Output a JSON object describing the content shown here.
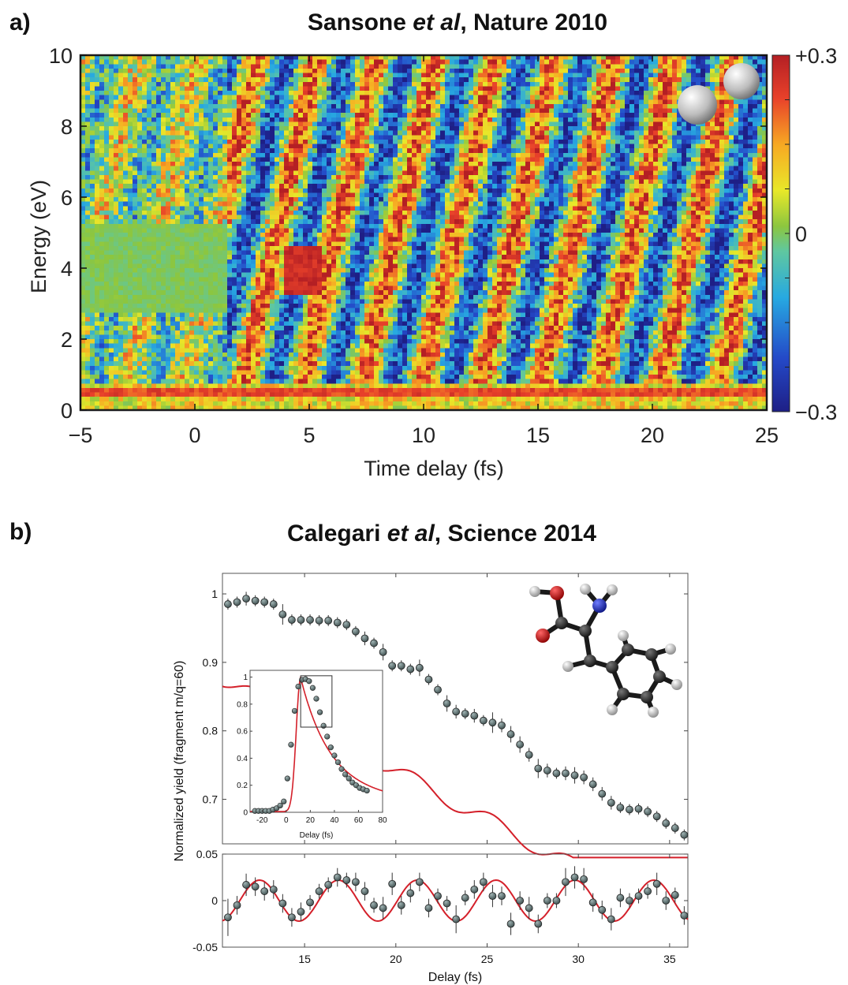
{
  "panel_a": {
    "letter": "a)",
    "title": {
      "author": "Sansone ",
      "etal": "et al",
      "rest": ", Nature 2010"
    },
    "chart_data": {
      "type": "heatmap",
      "xlabel": "Time delay (fs)",
      "ylabel": "Energy (eV)",
      "xlim": [
        -5,
        25
      ],
      "ylim": [
        0,
        10
      ],
      "x_ticks": [
        "−5",
        "0",
        "5",
        "10",
        "15",
        "20",
        "25"
      ],
      "x_tick_values": [
        -5,
        0,
        5,
        10,
        15,
        20,
        25
      ],
      "y_ticks": [
        "0",
        "2",
        "4",
        "6",
        "8",
        "10"
      ],
      "y_tick_values": [
        0,
        2,
        4,
        6,
        8,
        10
      ],
      "colorbar": {
        "labels": [
          "+0.3",
          "0",
          "−0.3"
        ],
        "values": [
          0.3,
          0,
          -0.3
        ],
        "range": [
          -0.3,
          0.3
        ],
        "colormap": "jet"
      },
      "molecule": "hydrogen-molecule-icon"
    }
  },
  "panel_b": {
    "letter": "b)",
    "title": {
      "author": "Calegari ",
      "etal": "et al",
      "rest": ", Science 2014"
    },
    "chart_data": [
      {
        "name": "main",
        "type": "scatter",
        "xlabel": "Delay (fs)",
        "ylabel": "Normalized yield (fragment m/q=60)",
        "xlim": [
          10.5,
          36
        ],
        "ylim": [
          0.635,
          1.03
        ],
        "y_ticks": [
          "1",
          "0.9",
          "0.8",
          "0.7"
        ],
        "y_tick_values": [
          1,
          0.9,
          0.8,
          0.7
        ],
        "x": [
          10.8,
          11.3,
          11.8,
          12.3,
          12.8,
          13.3,
          13.8,
          14.3,
          14.8,
          15.3,
          15.8,
          16.3,
          16.8,
          17.3,
          17.8,
          18.3,
          18.8,
          19.3,
          19.8,
          20.3,
          20.8,
          21.3,
          21.8,
          22.3,
          22.8,
          23.3,
          23.8,
          24.3,
          24.8,
          25.3,
          25.8,
          26.3,
          26.8,
          27.3,
          27.8,
          28.3,
          28.8,
          29.3,
          29.8,
          30.3,
          30.8,
          31.3,
          31.8,
          32.3,
          32.8,
          33.3,
          33.8,
          34.3,
          34.8,
          35.3,
          35.8
        ],
        "y": [
          0.985,
          0.988,
          0.993,
          0.99,
          0.988,
          0.985,
          0.97,
          0.962,
          0.962,
          0.962,
          0.961,
          0.961,
          0.958,
          0.955,
          0.945,
          0.935,
          0.928,
          0.915,
          0.895,
          0.895,
          0.89,
          0.892,
          0.875,
          0.86,
          0.84,
          0.828,
          0.825,
          0.822,
          0.815,
          0.812,
          0.808,
          0.795,
          0.78,
          0.765,
          0.745,
          0.742,
          0.738,
          0.738,
          0.735,
          0.732,
          0.722,
          0.708,
          0.695,
          0.688,
          0.685,
          0.686,
          0.682,
          0.675,
          0.665,
          0.658,
          0.648
        ],
        "yerr": [
          0.008,
          0.008,
          0.01,
          0.008,
          0.008,
          0.008,
          0.015,
          0.008,
          0.008,
          0.008,
          0.008,
          0.008,
          0.008,
          0.008,
          0.008,
          0.01,
          0.008,
          0.012,
          0.008,
          0.008,
          0.008,
          0.012,
          0.008,
          0.008,
          0.012,
          0.01,
          0.008,
          0.01,
          0.008,
          0.015,
          0.01,
          0.012,
          0.012,
          0.01,
          0.014,
          0.01,
          0.008,
          0.01,
          0.012,
          0.01,
          0.01,
          0.01,
          0.01,
          0.008,
          0.008,
          0.008,
          0.008,
          0.008,
          0.008,
          0.008,
          0.008
        ],
        "molecule": "phenylalanine-molecule-icon"
      },
      {
        "name": "inset",
        "type": "line",
        "xlabel": "Delay (fs)",
        "xlim": [
          -30,
          80
        ],
        "ylim": [
          0,
          1.05
        ],
        "x_ticks": [
          "-20",
          "0",
          "20",
          "40",
          "60",
          "80"
        ],
        "x_tick_values": [
          -20,
          0,
          20,
          40,
          60,
          80
        ],
        "y_ticks": [
          "0",
          "0.2",
          "0.4",
          "0.6",
          "0.8",
          "1"
        ],
        "y_tick_values": [
          0,
          0.2,
          0.4,
          0.6,
          0.8,
          1
        ],
        "x": [
          -26,
          -23,
          -20,
          -17,
          -14,
          -11,
          -8,
          -5,
          -2,
          1,
          4,
          7,
          10,
          13,
          16,
          19,
          22,
          25,
          28,
          31,
          34,
          37,
          40,
          43,
          46,
          49,
          52,
          55,
          58,
          61,
          64,
          67
        ],
        "y": [
          0.01,
          0.01,
          0.01,
          0.01,
          0.01,
          0.02,
          0.03,
          0.05,
          0.08,
          0.25,
          0.5,
          0.75,
          0.93,
          0.98,
          0.985,
          0.97,
          0.92,
          0.84,
          0.74,
          0.64,
          0.56,
          0.48,
          0.42,
          0.37,
          0.32,
          0.28,
          0.25,
          0.22,
          0.2,
          0.18,
          0.17,
          0.16
        ],
        "highlight_box": {
          "x": [
            12,
            38
          ],
          "y": [
            0.63,
            1.01
          ]
        }
      },
      {
        "name": "residual",
        "type": "scatter",
        "xlabel": "Delay (fs)",
        "xlim": [
          10.5,
          36
        ],
        "ylim": [
          -0.05,
          0.05
        ],
        "x_ticks": [
          "15",
          "20",
          "25",
          "30",
          "35"
        ],
        "x_tick_values": [
          15,
          20,
          25,
          30,
          35
        ],
        "y_ticks": [
          "0.05",
          "0",
          "-0.05"
        ],
        "y_tick_values": [
          0.05,
          0,
          -0.05
        ],
        "x": [
          10.8,
          11.3,
          11.8,
          12.3,
          12.8,
          13.3,
          13.8,
          14.3,
          14.8,
          15.3,
          15.8,
          16.3,
          16.8,
          17.3,
          17.8,
          18.3,
          18.8,
          19.3,
          19.8,
          20.3,
          20.8,
          21.3,
          21.8,
          22.3,
          22.8,
          23.3,
          23.8,
          24.3,
          24.8,
          25.3,
          25.8,
          26.3,
          26.8,
          27.3,
          27.8,
          28.3,
          28.8,
          29.3,
          29.8,
          30.3,
          30.8,
          31.3,
          31.8,
          32.3,
          32.8,
          33.3,
          33.8,
          34.3,
          34.8,
          35.3,
          35.8
        ],
        "y": [
          -0.018,
          -0.005,
          0.017,
          0.015,
          0.01,
          0.012,
          -0.003,
          -0.018,
          -0.012,
          -0.002,
          0.01,
          0.017,
          0.025,
          0.022,
          0.02,
          0.01,
          -0.005,
          -0.008,
          0.018,
          -0.005,
          0.008,
          0.02,
          -0.008,
          0.005,
          -0.003,
          -0.02,
          0.003,
          0.012,
          0.02,
          0.005,
          0.005,
          -0.025,
          0.0,
          -0.008,
          -0.025,
          0.0,
          0.0,
          0.02,
          0.025,
          0.023,
          -0.002,
          -0.01,
          -0.02,
          0.003,
          0.0,
          0.005,
          0.01,
          0.018,
          0.0,
          0.006,
          -0.016
        ],
        "yerr": [
          0.02,
          0.01,
          0.012,
          0.01,
          0.01,
          0.01,
          0.01,
          0.01,
          0.01,
          0.008,
          0.008,
          0.008,
          0.01,
          0.008,
          0.01,
          0.01,
          0.008,
          0.012,
          0.012,
          0.01,
          0.01,
          0.01,
          0.01,
          0.008,
          0.008,
          0.015,
          0.008,
          0.01,
          0.01,
          0.012,
          0.01,
          0.012,
          0.01,
          0.012,
          0.01,
          0.008,
          0.008,
          0.015,
          0.012,
          0.012,
          0.01,
          0.01,
          0.012,
          0.01,
          0.008,
          0.008,
          0.008,
          0.012,
          0.01,
          0.008,
          0.01
        ]
      }
    ]
  }
}
